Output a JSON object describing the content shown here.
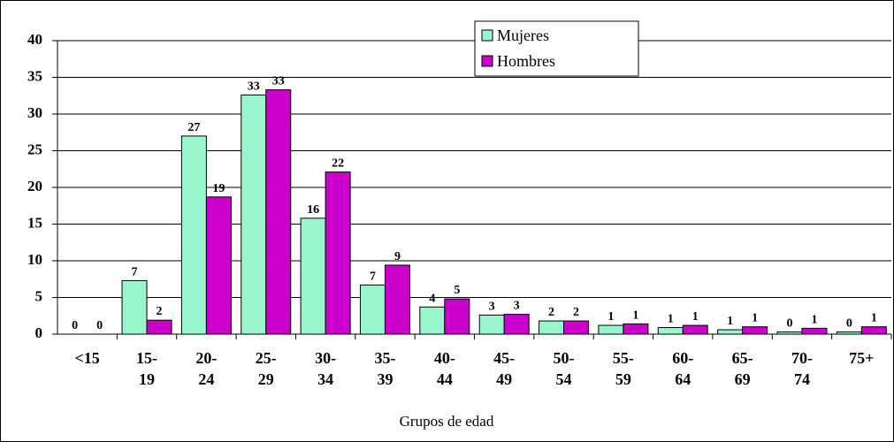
{
  "chart_data": {
    "type": "bar",
    "x_label": "Grupos de edad",
    "categories": [
      "<15",
      "15-\n19",
      "20-\n24",
      "25-\n29",
      "30-\n34",
      "35-\n39",
      "40-\n44",
      "45-\n49",
      "50-\n54",
      "55-\n59",
      "60-\n64",
      "65-\n69",
      "70-\n74",
      "75+"
    ],
    "series": [
      {
        "name": "Mujeres",
        "color": "#99f5cc",
        "values": [
          0,
          7.3,
          27,
          32.6,
          15.8,
          6.7,
          3.7,
          2.6,
          1.8,
          1.2,
          0.9,
          0.6,
          0.3,
          0.3
        ],
        "value_labels": [
          "0",
          "7",
          "27",
          "33",
          "16",
          "7",
          "4",
          "3",
          "2",
          "1",
          "1",
          "1",
          "0",
          "0"
        ]
      },
      {
        "name": "Hombres",
        "color": "#cc00cc",
        "values": [
          0,
          1.9,
          18.7,
          33.3,
          22.1,
          9.4,
          4.8,
          2.7,
          1.8,
          1.4,
          1.2,
          1.0,
          0.8,
          1.0
        ],
        "value_labels": [
          "0",
          "2",
          "19",
          "33",
          "22",
          "9",
          "5",
          "3",
          "2",
          "1",
          "1",
          "1",
          "1",
          "1"
        ]
      }
    ],
    "ylim": [
      0,
      40
    ],
    "yticks": [
      0,
      5,
      10,
      15,
      20,
      25,
      30,
      35,
      40
    ],
    "grid": true
  }
}
